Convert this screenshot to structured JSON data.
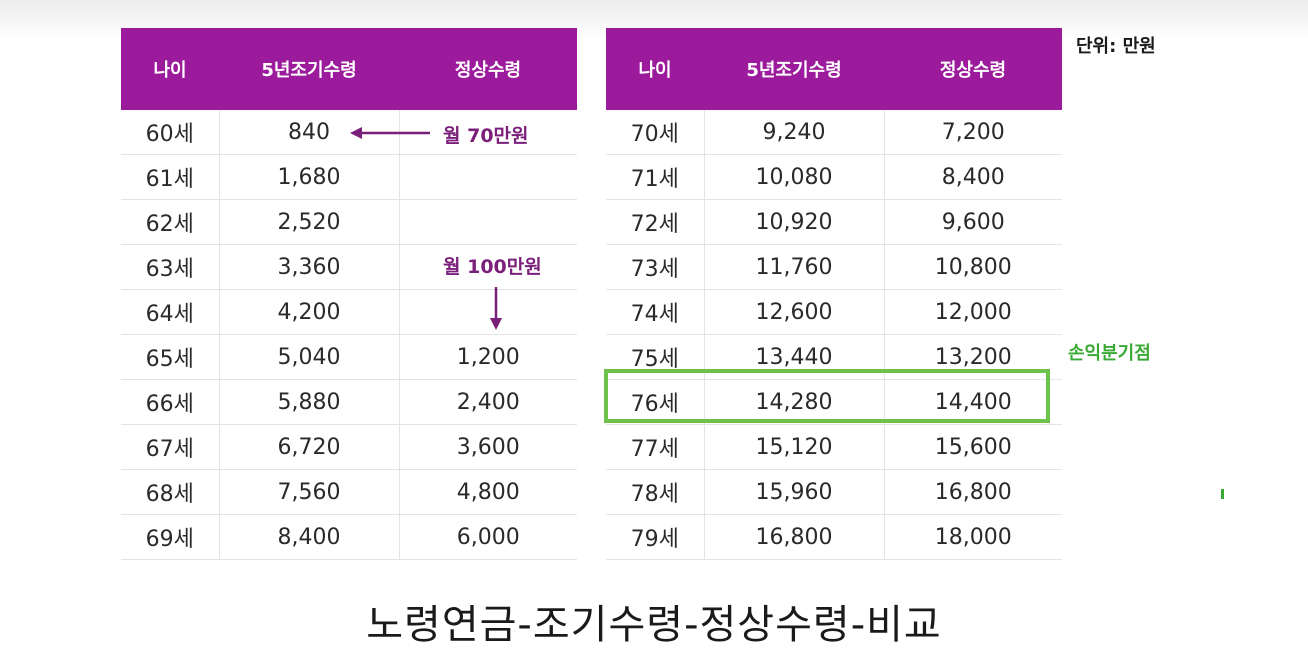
{
  "unit_label": "단위: 만원",
  "break_even_label": "손익분기점",
  "annotations": {
    "monthly_70": "월 70만원",
    "monthly_100": "월 100만원"
  },
  "caption": "노령연금-조기수령-정상수령-비교",
  "colors": {
    "header_bg": "#9c1a9c",
    "annotation": "#7a1f7a",
    "highlight": "#6cc24a",
    "break_even": "#3aaa35"
  },
  "tables": [
    {
      "headers": [
        "나이",
        "5년조기수령",
        "정상수령"
      ],
      "rows": [
        [
          "60세",
          "840",
          ""
        ],
        [
          "61세",
          "1,680",
          ""
        ],
        [
          "62세",
          "2,520",
          ""
        ],
        [
          "63세",
          "3,360",
          ""
        ],
        [
          "64세",
          "4,200",
          ""
        ],
        [
          "65세",
          "5,040",
          "1,200"
        ],
        [
          "66세",
          "5,880",
          "2,400"
        ],
        [
          "67세",
          "6,720",
          "3,600"
        ],
        [
          "68세",
          "7,560",
          "4,800"
        ],
        [
          "69세",
          "8,400",
          "6,000"
        ]
      ]
    },
    {
      "headers": [
        "나이",
        "5년조기수령",
        "정상수령"
      ],
      "rows": [
        [
          "70세",
          "9,240",
          "7,200"
        ],
        [
          "71세",
          "10,080",
          "8,400"
        ],
        [
          "72세",
          "10,920",
          "9,600"
        ],
        [
          "73세",
          "11,760",
          "10,800"
        ],
        [
          "74세",
          "12,600",
          "12,000"
        ],
        [
          "75세",
          "13,440",
          "13,200"
        ],
        [
          "76세",
          "14,280",
          "14,400"
        ],
        [
          "77세",
          "15,120",
          "15,600"
        ],
        [
          "78세",
          "15,960",
          "16,800"
        ],
        [
          "79세",
          "16,800",
          "18,000"
        ]
      ]
    }
  ]
}
